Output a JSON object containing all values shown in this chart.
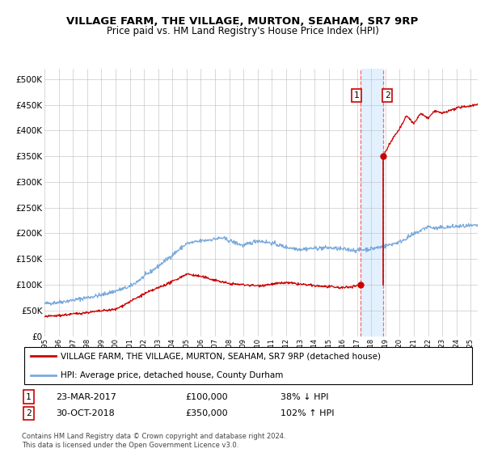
{
  "title": "VILLAGE FARM, THE VILLAGE, MURTON, SEAHAM, SR7 9RP",
  "subtitle": "Price paid vs. HM Land Registry's House Price Index (HPI)",
  "ylabel_ticks": [
    "£0",
    "£50K",
    "£100K",
    "£150K",
    "£200K",
    "£250K",
    "£300K",
    "£350K",
    "£400K",
    "£450K",
    "£500K"
  ],
  "ytick_values": [
    0,
    50000,
    100000,
    150000,
    200000,
    250000,
    300000,
    350000,
    400000,
    450000,
    500000
  ],
  "xlim_start": 1995.0,
  "xlim_end": 2025.5,
  "ylim": [
    0,
    520000
  ],
  "marker1_x": 2017.22,
  "marker1_y": 100000,
  "marker2_x": 2018.83,
  "marker2_y": 350000,
  "sale_line_color": "#cc0000",
  "hpi_line_color": "#7aaadd",
  "marker_color": "#cc0000",
  "vline_color": "#ff6666",
  "vband_color": "#ddeeff",
  "legend_sale": "VILLAGE FARM, THE VILLAGE, MURTON, SEAHAM, SR7 9RP (detached house)",
  "legend_hpi": "HPI: Average price, detached house, County Durham",
  "table_row1": [
    "1",
    "23-MAR-2017",
    "£100,000",
    "38% ↓ HPI"
  ],
  "table_row2": [
    "2",
    "30-OCT-2018",
    "£350,000",
    "102% ↑ HPI"
  ],
  "footnote": "Contains HM Land Registry data © Crown copyright and database right 2024.\nThis data is licensed under the Open Government Licence v3.0.",
  "title_fontsize": 9.5,
  "subtitle_fontsize": 8.5,
  "axis_fontsize": 7.5
}
